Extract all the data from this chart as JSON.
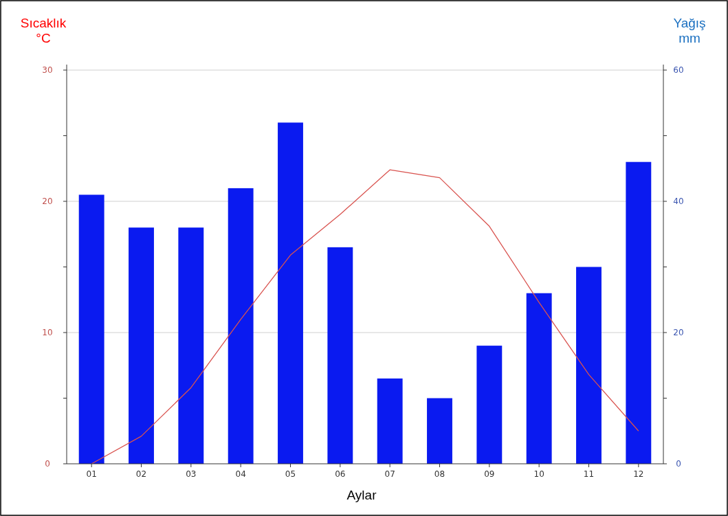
{
  "chart_data": {
    "type": "bar",
    "ylabel": "Sıcaklık °C",
    "y2label": "Yağış mm",
    "xlabel": "Aylar",
    "categories": [
      "01",
      "02",
      "03",
      "04",
      "05",
      "06",
      "07",
      "08",
      "09",
      "10",
      "11",
      "12"
    ],
    "series": [
      {
        "axis": "y2",
        "color": "#0a1af0",
        "values": [
          41,
          36,
          36,
          42,
          52,
          33,
          13,
          10,
          18,
          26,
          30,
          46
        ]
      },
      {
        "type": "line",
        "axis": "y",
        "color": "#d9534f",
        "values": [
          0,
          2.1,
          5.8,
          11,
          15.9,
          19,
          22.4,
          21.8,
          18.1,
          12.3,
          6.8,
          2.5
        ]
      }
    ],
    "ylim": [
      0,
      30
    ],
    "yticks": [
      0,
      {
        "value": 5,
        "label": null
      },
      10,
      {
        "value": 15,
        "label": null
      },
      20,
      {
        "value": 25,
        "label": null
      },
      30
    ],
    "y2lim": [
      0,
      60
    ],
    "y2ticks": [
      0,
      {
        "value": 10,
        "label": null
      },
      20,
      {
        "value": 30,
        "label": null
      },
      40,
      {
        "value": 50,
        "label": null
      },
      60
    ],
    "grid": "y",
    "marker": "none",
    "line_style": "solid"
  }
}
